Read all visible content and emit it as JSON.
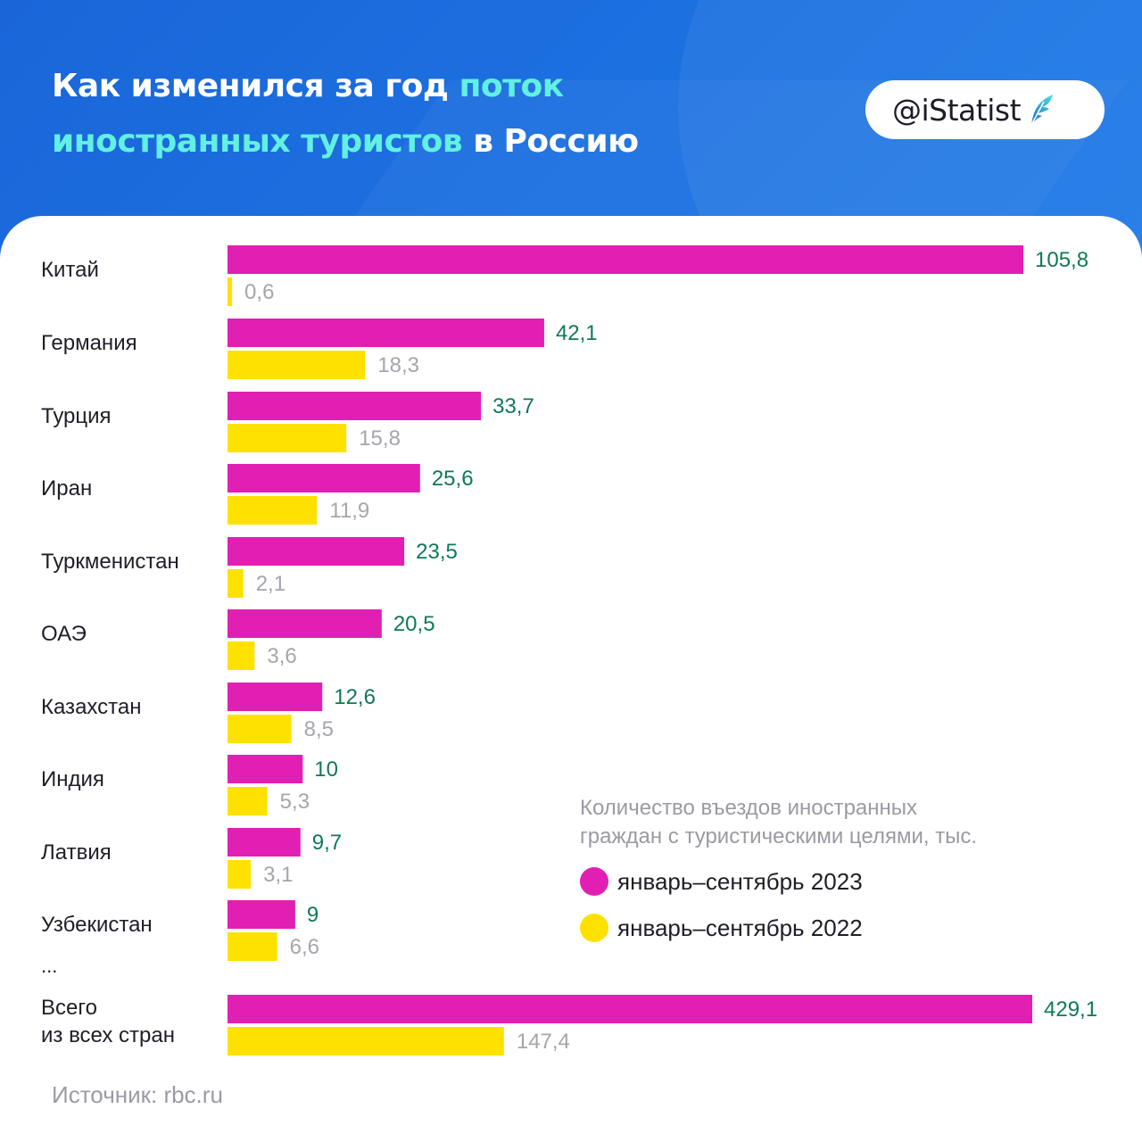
{
  "header": {
    "title_part1": "Как изменился за год ",
    "title_highlight1": "поток",
    "title_highlight2": "иностранных туристов",
    "title_part2": " в Россию",
    "badge_text": "@iStatist",
    "badge_icon": "feather-logo-icon"
  },
  "chart_data": {
    "type": "bar",
    "orientation": "horizontal",
    "categories": [
      "Китай",
      "Германия",
      "Турция",
      "Иран",
      "Туркменистан",
      "ОАЭ",
      "Казахстан",
      "Индия",
      "Латвия",
      "Узбекистан",
      "Всего из всех стран"
    ],
    "series": [
      {
        "name": "январь–сентябрь 2023",
        "color": "#e21fb3",
        "values": [
          105.8,
          42.1,
          33.7,
          25.6,
          23.5,
          20.5,
          12.6,
          10,
          9.7,
          9,
          429.1
        ],
        "labels": [
          "105,8",
          "42,1",
          "33,7",
          "25,6",
          "23,5",
          "20,5",
          "12,6",
          "10",
          "9,7",
          "9",
          "429,1"
        ]
      },
      {
        "name": "январь–сентябрь 2022",
        "color": "#ffe100",
        "values": [
          0.6,
          18.3,
          15.8,
          11.9,
          2.1,
          3.6,
          8.5,
          5.3,
          3.1,
          6.6,
          147.4
        ],
        "labels": [
          "0,6",
          "18,3",
          "15,8",
          "11,9",
          "2,1",
          "3,6",
          "8,5",
          "5,3",
          "3,1",
          "6,6",
          "147,4"
        ]
      }
    ],
    "legend_title": "Количество въездов иностранных граждан с туристическими целями, тыс.",
    "legend_title_line1": "Количество въездов иностранных",
    "legend_title_line2": "граждан с туристическими целями, тыс.",
    "legend_position": "bottom-right",
    "ellipsis": "...",
    "grid": false
  },
  "footer": {
    "source": "Источник: rbc.ru"
  },
  "colors": {
    "background": "#1e78e6",
    "title_highlight": "#62f0e3",
    "bar_2023": "#e21fb3",
    "bar_2022": "#ffe100",
    "label_2023": "#0f7a52",
    "label_2022": "#a5a5ad"
  }
}
